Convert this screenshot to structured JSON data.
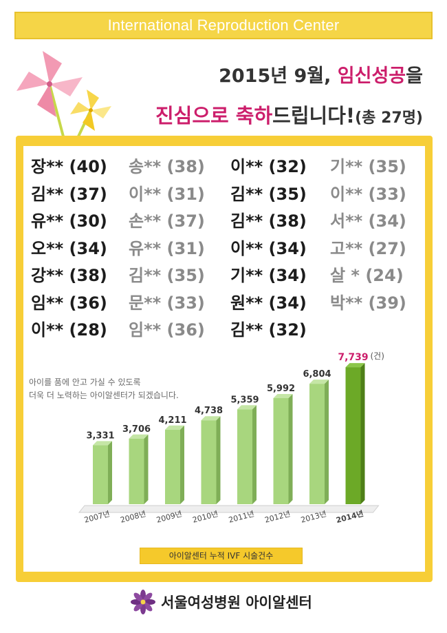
{
  "header": {
    "banner": "International Reproduction Center"
  },
  "headline": {
    "line1": "2015년 9월, ",
    "line1_highlight": "임신성공",
    "line1_suffix": "을",
    "line2_highlight1": "진심으로 ",
    "line2_highlight2": "축하",
    "line2_mid": "드립니다!",
    "line2_count": "(총 27명)"
  },
  "names": [
    [
      "장** (40)",
      "송** (38)",
      "이** (32)",
      "기** (35)"
    ],
    [
      "김** (37)",
      "이** (31)",
      "김** (35)",
      "이** (33)"
    ],
    [
      "유** (30)",
      "손** (37)",
      "김** (38)",
      "서** (34)"
    ],
    [
      "오** (34)",
      "유** (31)",
      "이** (34)",
      "고** (27)"
    ],
    [
      "강** (38)",
      "김** (35)",
      "기** (34)",
      "살 * (24)"
    ],
    [
      "임** (36)",
      "문** (33)",
      "원** (34)",
      "박** (39)"
    ],
    [
      "이** (28)",
      "임** (36)",
      "김** (32)",
      ""
    ]
  ],
  "note": {
    "line1": "아이를 품에 안고 가실 수 있도록",
    "line2": "더욱 더 노력하는 아이알센터가 되겠습니다."
  },
  "chart_data": {
    "type": "bar",
    "categories": [
      "2007년",
      "2008년",
      "2009년",
      "2010년",
      "2011년",
      "2012년",
      "2013년",
      "2014년"
    ],
    "values": [
      3331,
      3706,
      4211,
      4738,
      5359,
      5992,
      6804,
      7739
    ],
    "labels": [
      "3,331",
      "3,706",
      "4,211",
      "4,738",
      "5,359",
      "5,992",
      "6,804",
      "7,739"
    ],
    "unit": "(건)",
    "highlight_index": 7,
    "colors": {
      "bar": "#a8d67e",
      "bar_highlight": "#6ca927",
      "highlight_label": "#cc1e6b"
    }
  },
  "caption": "아이알센터 누적 IVF 시술건수",
  "footer": {
    "hospital": "서울여성병원 아이알센터"
  },
  "colors": {
    "accent": "#cc1e6b",
    "frame": "#f7ce37",
    "banner": "#f5d547"
  }
}
